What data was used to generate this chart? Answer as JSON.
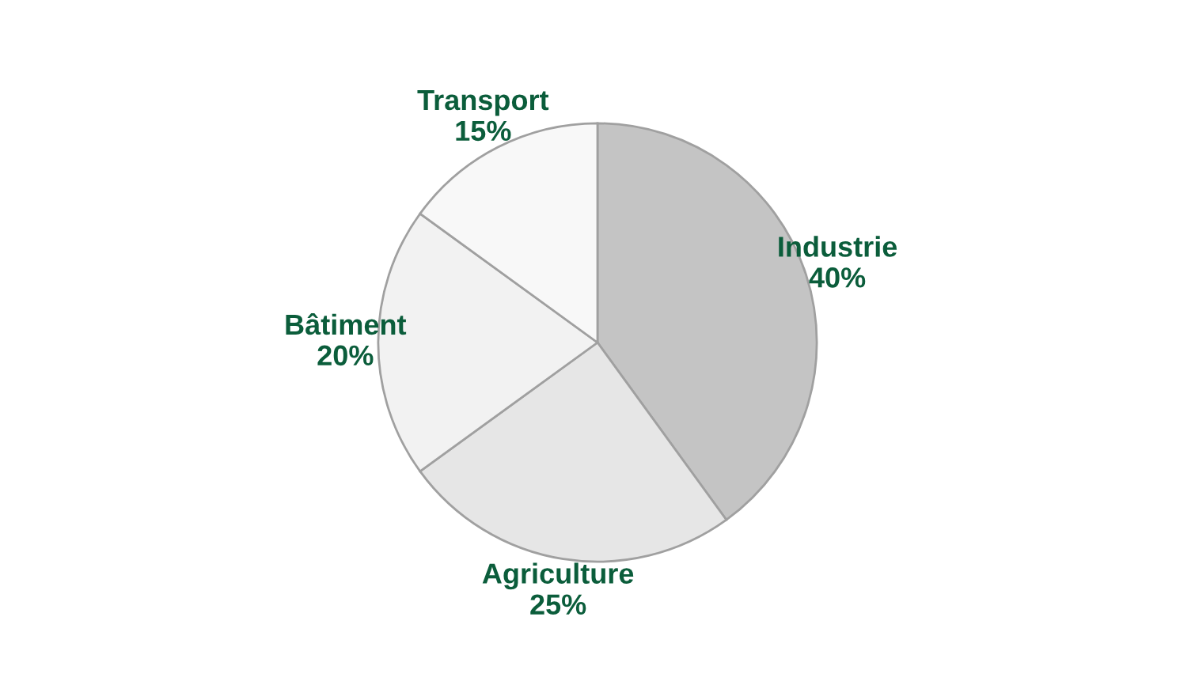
{
  "chart_data": {
    "type": "pie",
    "categories": [
      "Industrie",
      "Agriculture",
      "Bâtiment",
      "Transport"
    ],
    "values": [
      40,
      25,
      20,
      15
    ],
    "value_labels": [
      "40%",
      "25%",
      "20%",
      "15%"
    ],
    "colors": [
      "#c4c4c4",
      "#e6e6e6",
      "#f2f2f2",
      "#f8f8f8"
    ]
  }
}
